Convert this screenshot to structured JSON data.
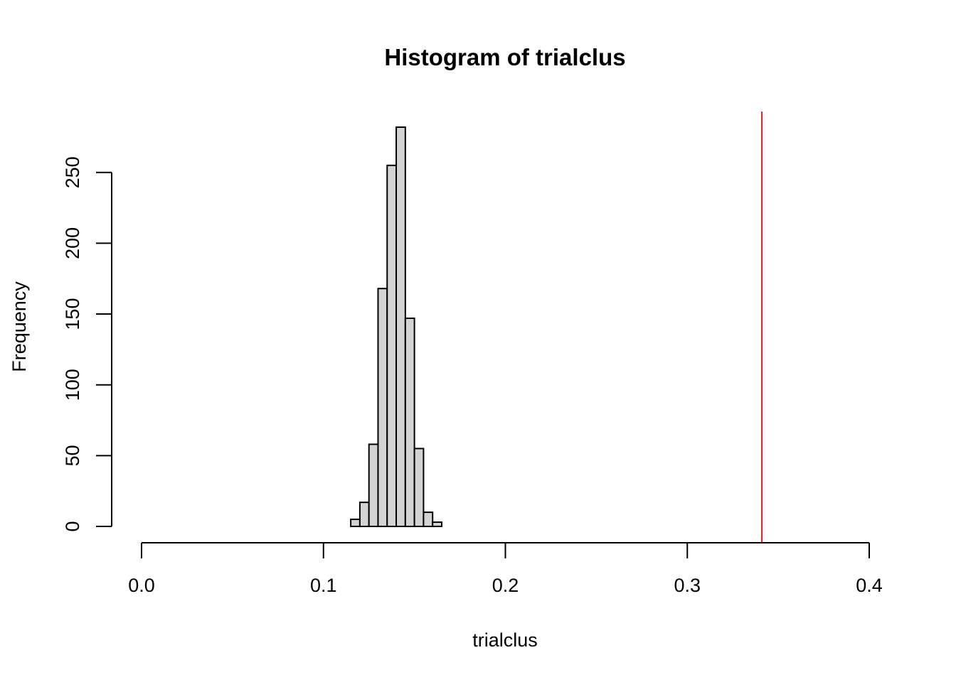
{
  "chart_data": {
    "type": "bar",
    "title": "Histogram of trialclus",
    "xlabel": "trialclus",
    "ylabel": "Frequency",
    "xlim": [
      0,
      0.4
    ],
    "ylim": [
      0,
      295
    ],
    "x_ticks": [
      0,
      0.1,
      0.2,
      0.3,
      0.4
    ],
    "x_tick_labels": [
      "0.0",
      "0.1",
      "0.2",
      "0.3",
      "0.4"
    ],
    "y_ticks": [
      0,
      50,
      100,
      150,
      200,
      250
    ],
    "y_tick_labels": [
      "0",
      "50",
      "100",
      "150",
      "200",
      "250"
    ],
    "bins": [
      {
        "start": 0.115,
        "end": 0.12,
        "count": 5
      },
      {
        "start": 0.12,
        "end": 0.125,
        "count": 17
      },
      {
        "start": 0.125,
        "end": 0.13,
        "count": 58
      },
      {
        "start": 0.13,
        "end": 0.135,
        "count": 168
      },
      {
        "start": 0.135,
        "end": 0.14,
        "count": 255
      },
      {
        "start": 0.14,
        "end": 0.145,
        "count": 282
      },
      {
        "start": 0.145,
        "end": 0.15,
        "count": 147
      },
      {
        "start": 0.15,
        "end": 0.155,
        "count": 55
      },
      {
        "start": 0.155,
        "end": 0.16,
        "count": 10
      },
      {
        "start": 0.16,
        "end": 0.165,
        "count": 3
      }
    ],
    "reference_line": {
      "x": 0.341,
      "color": "#e31a1c"
    },
    "bar_color": "#d3d3d3",
    "grid": false
  }
}
